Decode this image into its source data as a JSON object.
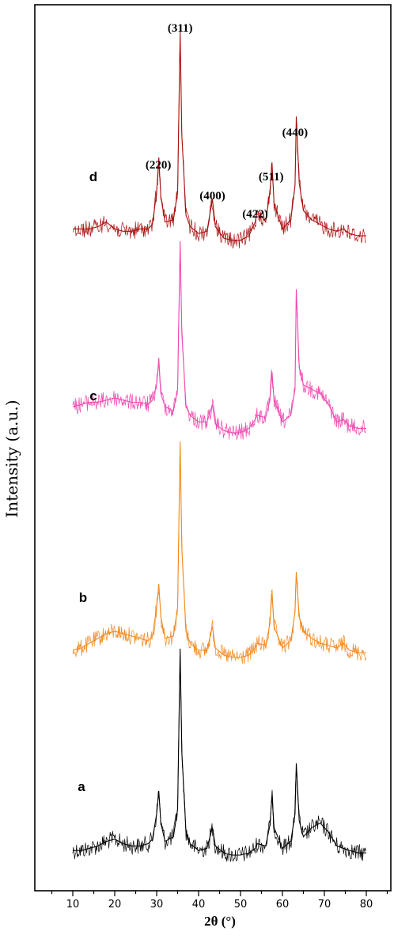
{
  "chart_data": {
    "type": "line",
    "xlabel": "2θ (°)",
    "ylabel": "Intensity (a.u.)",
    "xlim": [
      5,
      85
    ],
    "x_ticks": [
      10,
      20,
      30,
      40,
      50,
      60,
      70,
      80
    ],
    "grid": false,
    "legend": "none",
    "series": [
      {
        "name": "a",
        "color": "#000000",
        "x": [
          10,
          12,
          14,
          16,
          18,
          20,
          22,
          24,
          26,
          28,
          29,
          30,
          30.5,
          31,
          32,
          34,
          35,
          35.6,
          36,
          37,
          38,
          40,
          42,
          43.3,
          44,
          46,
          48,
          50,
          52,
          53.5,
          54,
          56,
          57,
          57.5,
          58,
          60,
          62,
          63,
          63.3,
          64,
          65,
          67,
          69,
          71,
          73,
          74.5,
          76,
          78,
          80
        ],
        "y": [
          12,
          12,
          13,
          14,
          16,
          17,
          15,
          14,
          14,
          15,
          17,
          28,
          38,
          24,
          16,
          18,
          30,
          100,
          55,
          20,
          15,
          12,
          13,
          22,
          14,
          11,
          10,
          10,
          11,
          13,
          15,
          14,
          23,
          36,
          22,
          13,
          16,
          28,
          50,
          25,
          18,
          22,
          24,
          20,
          14,
          13,
          12,
          11,
          11
        ]
      },
      {
        "name": "b",
        "color": "#f28a1e",
        "x": [
          10,
          12,
          14,
          16,
          18,
          20,
          22,
          24,
          26,
          28,
          29,
          30,
          30.5,
          31,
          32,
          34,
          35,
          35.6,
          36,
          37,
          38,
          40,
          42,
          43.3,
          44,
          46,
          48,
          50,
          52,
          53.5,
          54,
          56,
          57,
          57.5,
          58,
          60,
          62,
          63,
          63.3,
          64,
          65,
          67,
          69,
          71,
          73,
          74.5,
          76,
          78,
          80
        ],
        "y": [
          12,
          13,
          15,
          17,
          19,
          20,
          19,
          18,
          17,
          16,
          18,
          30,
          40,
          26,
          17,
          18,
          30,
          100,
          55,
          20,
          15,
          12,
          12,
          22,
          13,
          10,
          9,
          9,
          10,
          13,
          15,
          14,
          23,
          36,
          22,
          13,
          16,
          28,
          45,
          26,
          20,
          17,
          15,
          14,
          13,
          15,
          12,
          11,
          11
        ]
      },
      {
        "name": "c",
        "color": "#f048b0",
        "x": [
          10,
          12,
          14,
          16,
          18,
          20,
          22,
          24,
          26,
          28,
          29,
          30,
          30.5,
          31,
          32,
          34,
          35,
          35.6,
          36,
          37,
          38,
          40,
          42,
          43.3,
          44,
          46,
          48,
          50,
          52,
          53.5,
          54,
          56,
          57,
          57.5,
          58,
          60,
          62,
          63,
          63.3,
          64,
          65,
          67,
          69,
          71,
          73,
          74.5,
          76,
          78,
          80
        ],
        "y": [
          24,
          25,
          26,
          26,
          27,
          28,
          27,
          26,
          26,
          25,
          27,
          34,
          46,
          30,
          24,
          22,
          32,
          100,
          58,
          24,
          20,
          17,
          17,
          25,
          16,
          13,
          12,
          12,
          14,
          18,
          20,
          19,
          27,
          40,
          27,
          17,
          20,
          32,
          78,
          42,
          34,
          32,
          30,
          25,
          17,
          18,
          15,
          14,
          14
        ]
      },
      {
        "name": "d",
        "color": "#a8100f",
        "x": [
          10,
          12,
          14,
          16,
          18,
          20,
          22,
          24,
          26,
          28,
          29,
          30,
          30.5,
          31,
          32,
          34,
          35,
          35.6,
          36,
          37,
          38,
          40,
          42,
          43.3,
          44,
          46,
          48,
          50,
          52,
          53.5,
          54,
          56,
          57,
          57.5,
          58,
          60,
          62,
          63,
          63.3,
          64,
          65,
          67,
          69,
          71,
          73,
          74.5,
          76,
          78,
          80
        ],
        "y": [
          14,
          14,
          14,
          15,
          17,
          14,
          13,
          13,
          14,
          14,
          16,
          30,
          45,
          28,
          17,
          18,
          30,
          100,
          55,
          20,
          15,
          12,
          13,
          27,
          15,
          10,
          9,
          9,
          11,
          17,
          22,
          17,
          30,
          43,
          25,
          14,
          18,
          33,
          63,
          34,
          22,
          18,
          16,
          14,
          13,
          14,
          12,
          11,
          11
        ]
      }
    ],
    "peak_labels": [
      {
        "text": "(220)",
        "x": 30.4
      },
      {
        "text": "(311)",
        "x": 35.6
      },
      {
        "text": "(400)",
        "x": 43.3
      },
      {
        "text": "(422)",
        "x": 53.5
      },
      {
        "text": "(511)",
        "x": 57.3
      },
      {
        "text": "(440)",
        "x": 63.0
      }
    ]
  }
}
